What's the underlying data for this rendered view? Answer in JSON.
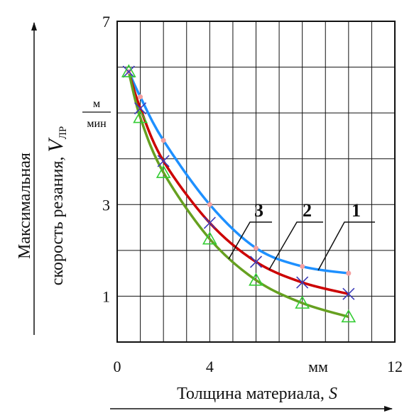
{
  "chart_data": {
    "type": "line",
    "xlabel": "Толщина материала, ",
    "xlabel_symbol": "S",
    "ylabel_line1": "Максимальная",
    "ylabel_line2": "скорость резания, ",
    "ylabel_symbol": "V",
    "ylabel_subscript": "ЛР",
    "y_unit_numerator": "м",
    "y_unit_denominator": "мин",
    "x_unit": "мм",
    "xlim": [
      0,
      12
    ],
    "ylim": [
      0,
      7
    ],
    "x_ticks": [
      0,
      4,
      12
    ],
    "x_tick_labels": [
      "0",
      "4",
      "12"
    ],
    "y_ticks": [
      1,
      3,
      7
    ],
    "y_tick_labels": [
      "1",
      "3",
      "7"
    ],
    "grid": true,
    "series": [
      {
        "name": "1",
        "color": "#1E90FF",
        "marker": "dot",
        "marker_color": "#F4A0A0",
        "x": [
          0.5,
          1,
          2,
          4,
          6,
          8,
          10
        ],
        "y": [
          5.9,
          5.35,
          4.4,
          3.0,
          2.05,
          1.65,
          1.5
        ]
      },
      {
        "name": "2",
        "color": "#CC0000",
        "marker": "x",
        "marker_color": "#3B3BB8",
        "x": [
          0.5,
          1,
          2,
          4,
          6,
          8,
          10
        ],
        "y": [
          5.9,
          5.1,
          3.95,
          2.6,
          1.75,
          1.3,
          1.05
        ]
      },
      {
        "name": "3",
        "color": "#66A020",
        "marker": "triangle",
        "marker_color": "#33CC33",
        "x": [
          0.5,
          1,
          2,
          4,
          6,
          8,
          10
        ],
        "y": [
          5.9,
          4.9,
          3.7,
          2.25,
          1.35,
          0.85,
          0.55
        ]
      }
    ]
  }
}
